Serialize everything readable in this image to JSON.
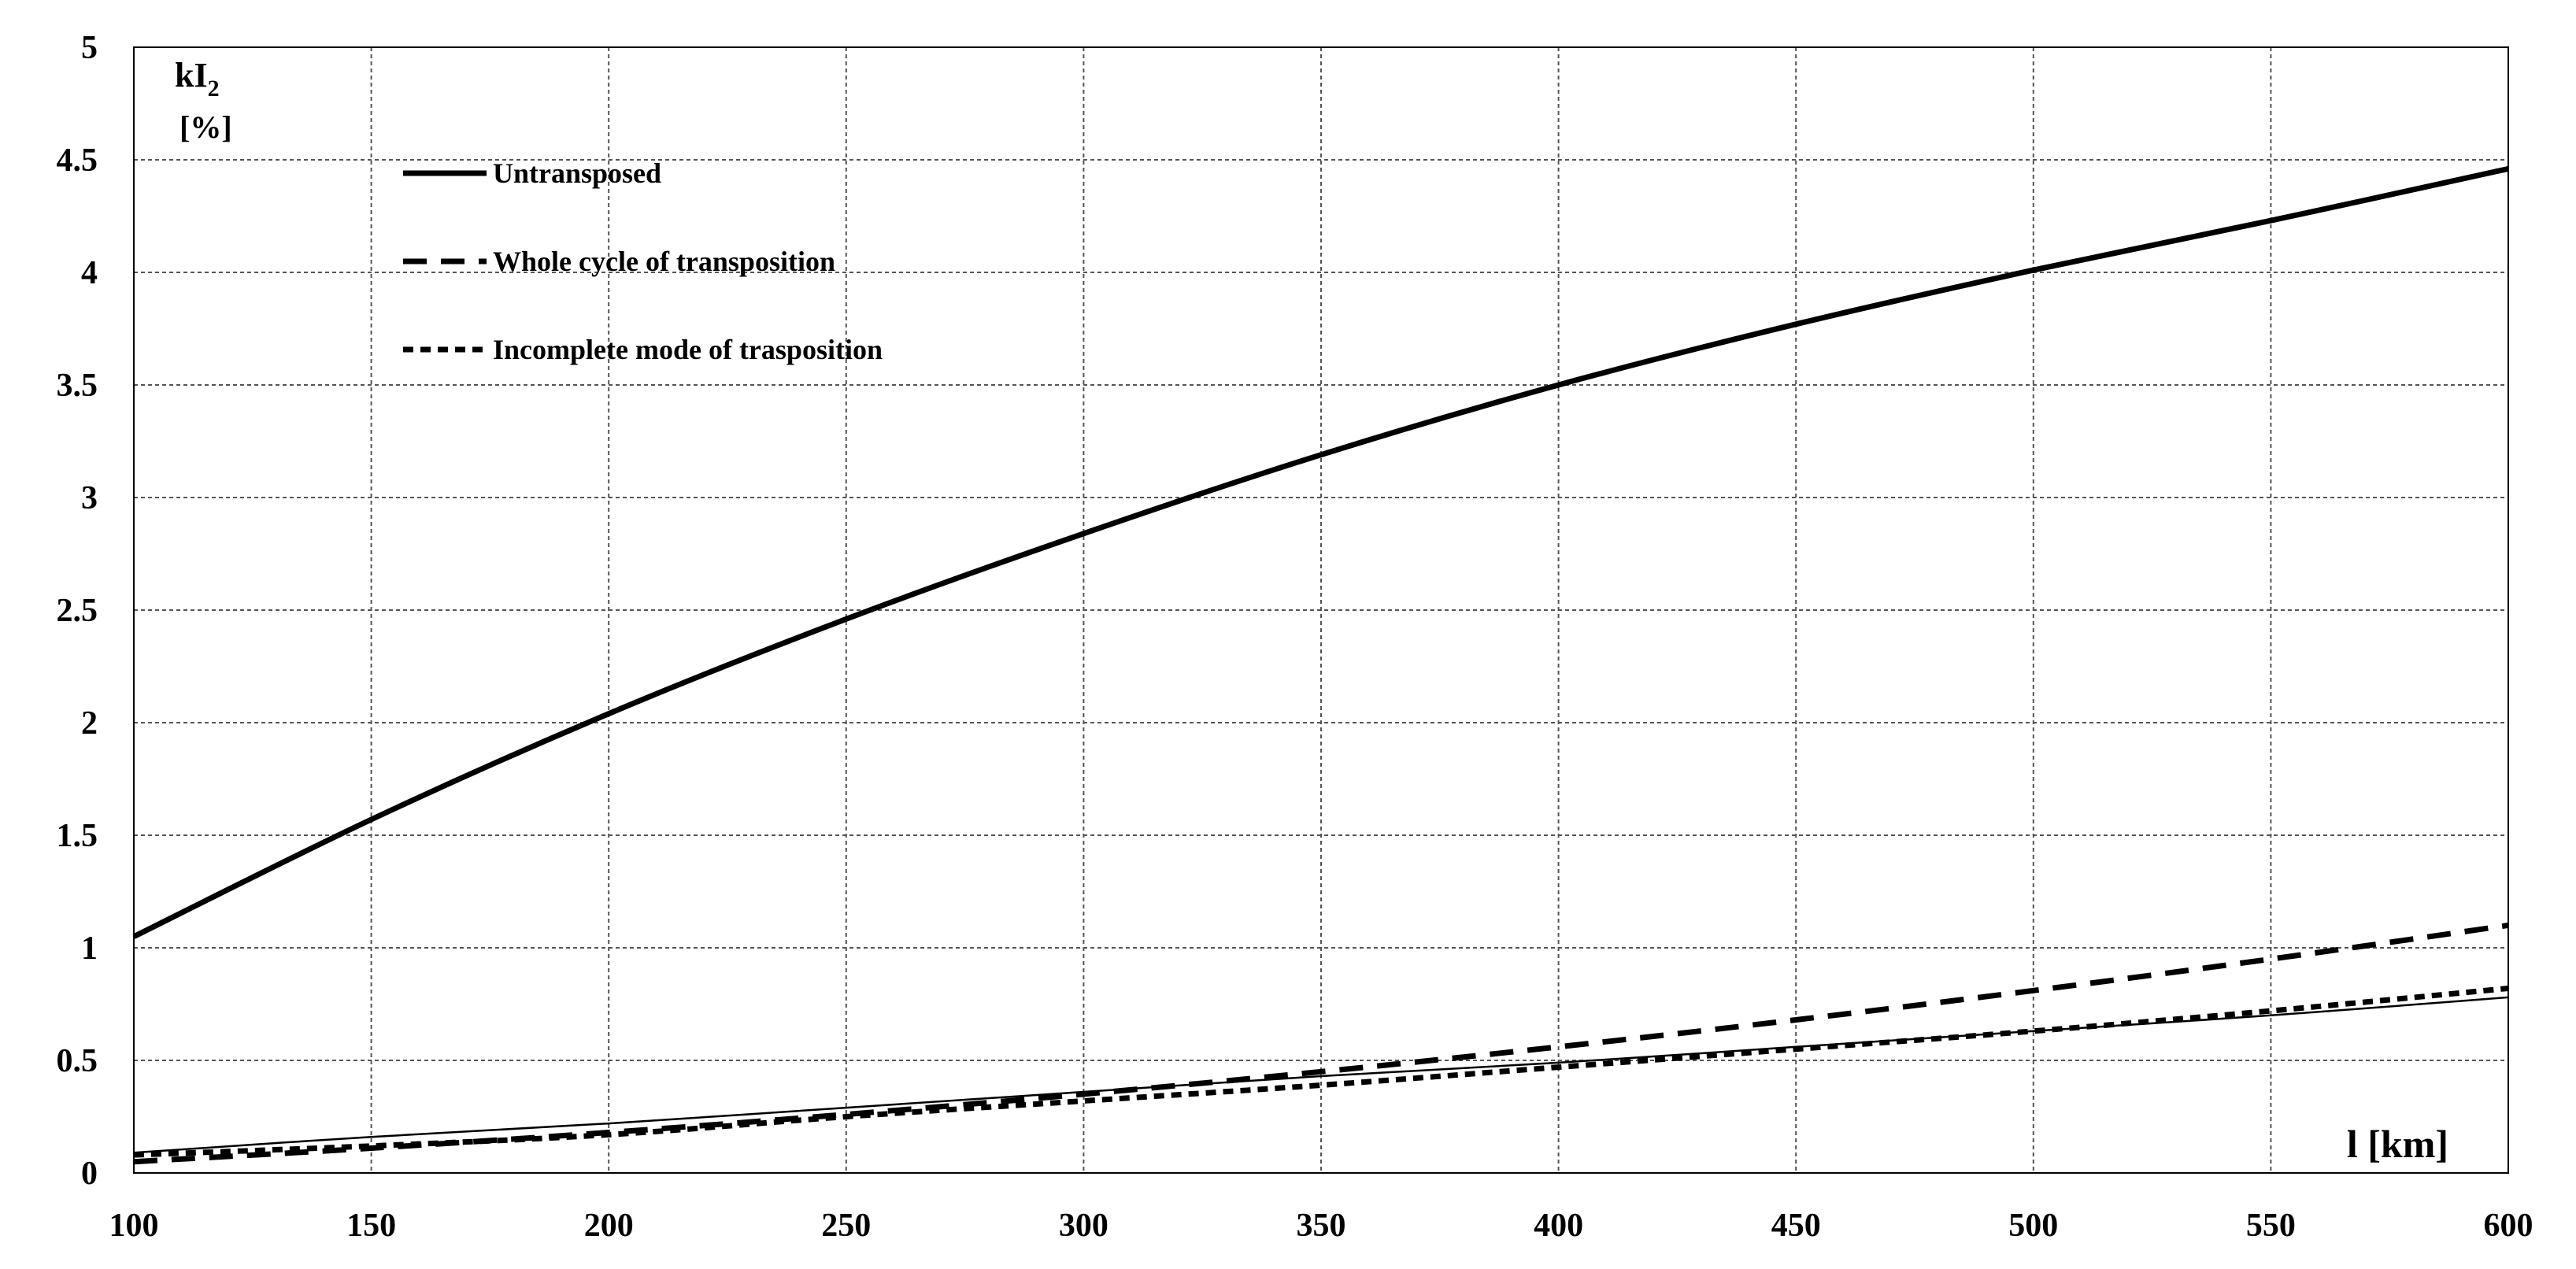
{
  "chart_data": {
    "type": "line",
    "title": "",
    "xlabel": "l [km]",
    "ylabel": "kI2 [%]",
    "ylabel_main": "kI",
    "ylabel_sub": "2",
    "ylabel_unit": "[%]",
    "xlim": [
      100,
      600
    ],
    "ylim": [
      0,
      5
    ],
    "x_ticks": [
      "100",
      "150",
      "200",
      "250",
      "300",
      "350",
      "400",
      "450",
      "500",
      "550",
      "600"
    ],
    "y_ticks": [
      "0",
      "0.5",
      "1",
      "1.5",
      "2",
      "2.5",
      "3",
      "3.5",
      "4",
      "4.5",
      "5"
    ],
    "grid": true,
    "legend_position": "top-left",
    "x": [
      100,
      150,
      200,
      250,
      300,
      350,
      400,
      450,
      500,
      550,
      600
    ],
    "series": [
      {
        "name": "Untransposed",
        "style": "solid",
        "values": [
          1.05,
          1.57,
          2.04,
          2.46,
          2.84,
          3.19,
          3.5,
          3.77,
          4.01,
          4.23,
          4.46
        ]
      },
      {
        "name": "Whole cycle of transposition",
        "style": "dashed",
        "values": [
          0.05,
          0.11,
          0.18,
          0.26,
          0.35,
          0.45,
          0.56,
          0.68,
          0.81,
          0.95,
          1.1
        ]
      },
      {
        "name": "Incomplete mode of trasposition",
        "style": "dotted",
        "values": [
          0.08,
          0.12,
          0.17,
          0.25,
          0.32,
          0.39,
          0.47,
          0.55,
          0.63,
          0.72,
          0.82
        ]
      },
      {
        "style": "thin",
        "values": [
          0.09,
          0.16,
          0.22,
          0.29,
          0.36,
          0.43,
          0.49,
          0.56,
          0.63,
          0.7,
          0.78
        ]
      }
    ]
  }
}
